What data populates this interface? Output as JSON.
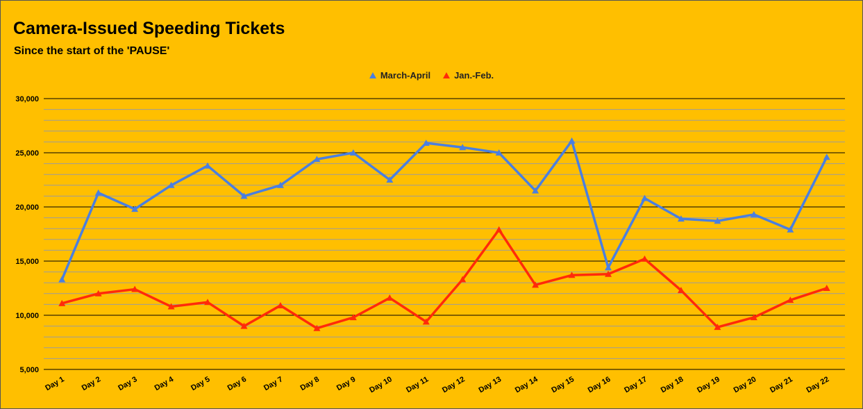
{
  "chart_data": {
    "type": "line",
    "title": "Camera-Issued Speeding Tickets",
    "subtitle": "Since the start of the 'PAUSE'",
    "xlabel": "",
    "ylabel": "",
    "ylim": [
      5000,
      30000
    ],
    "y_ticks": [
      "5,000",
      "10,000",
      "15,000",
      "20,000",
      "25,000",
      "30,000"
    ],
    "y_tick_values": [
      5000,
      10000,
      15000,
      20000,
      25000,
      30000
    ],
    "grid": true,
    "legend_position": "top",
    "categories": [
      "Day 1",
      "Day 2",
      "Day 3",
      "Day 4",
      "Day 5",
      "Day 6",
      "Day 7",
      "Day 8",
      "Day 9",
      "Day 10",
      "Day 11",
      "Day 12",
      "Day 13",
      "Day 14",
      "Day 15",
      "Day 16",
      "Day 17",
      "Day 18",
      "Day 19",
      "Day 20",
      "Day 21",
      "Day 22"
    ],
    "series": [
      {
        "name": "March-April",
        "color": "#4a7fe0",
        "values": [
          13300,
          21300,
          19800,
          22000,
          23800,
          21000,
          22000,
          24400,
          25000,
          22500,
          25900,
          25500,
          25000,
          21500,
          26100,
          14400,
          20800,
          18900,
          18700,
          19300,
          17900,
          24600
        ]
      },
      {
        "name": "Jan.-Feb.",
        "color": "#ff2a0a",
        "values": [
          11100,
          12000,
          12400,
          10800,
          11200,
          9000,
          10900,
          8800,
          9800,
          11600,
          9400,
          13300,
          17900,
          12800,
          13700,
          13800,
          15200,
          12300,
          8900,
          9800,
          11400,
          12500
        ]
      }
    ]
  }
}
